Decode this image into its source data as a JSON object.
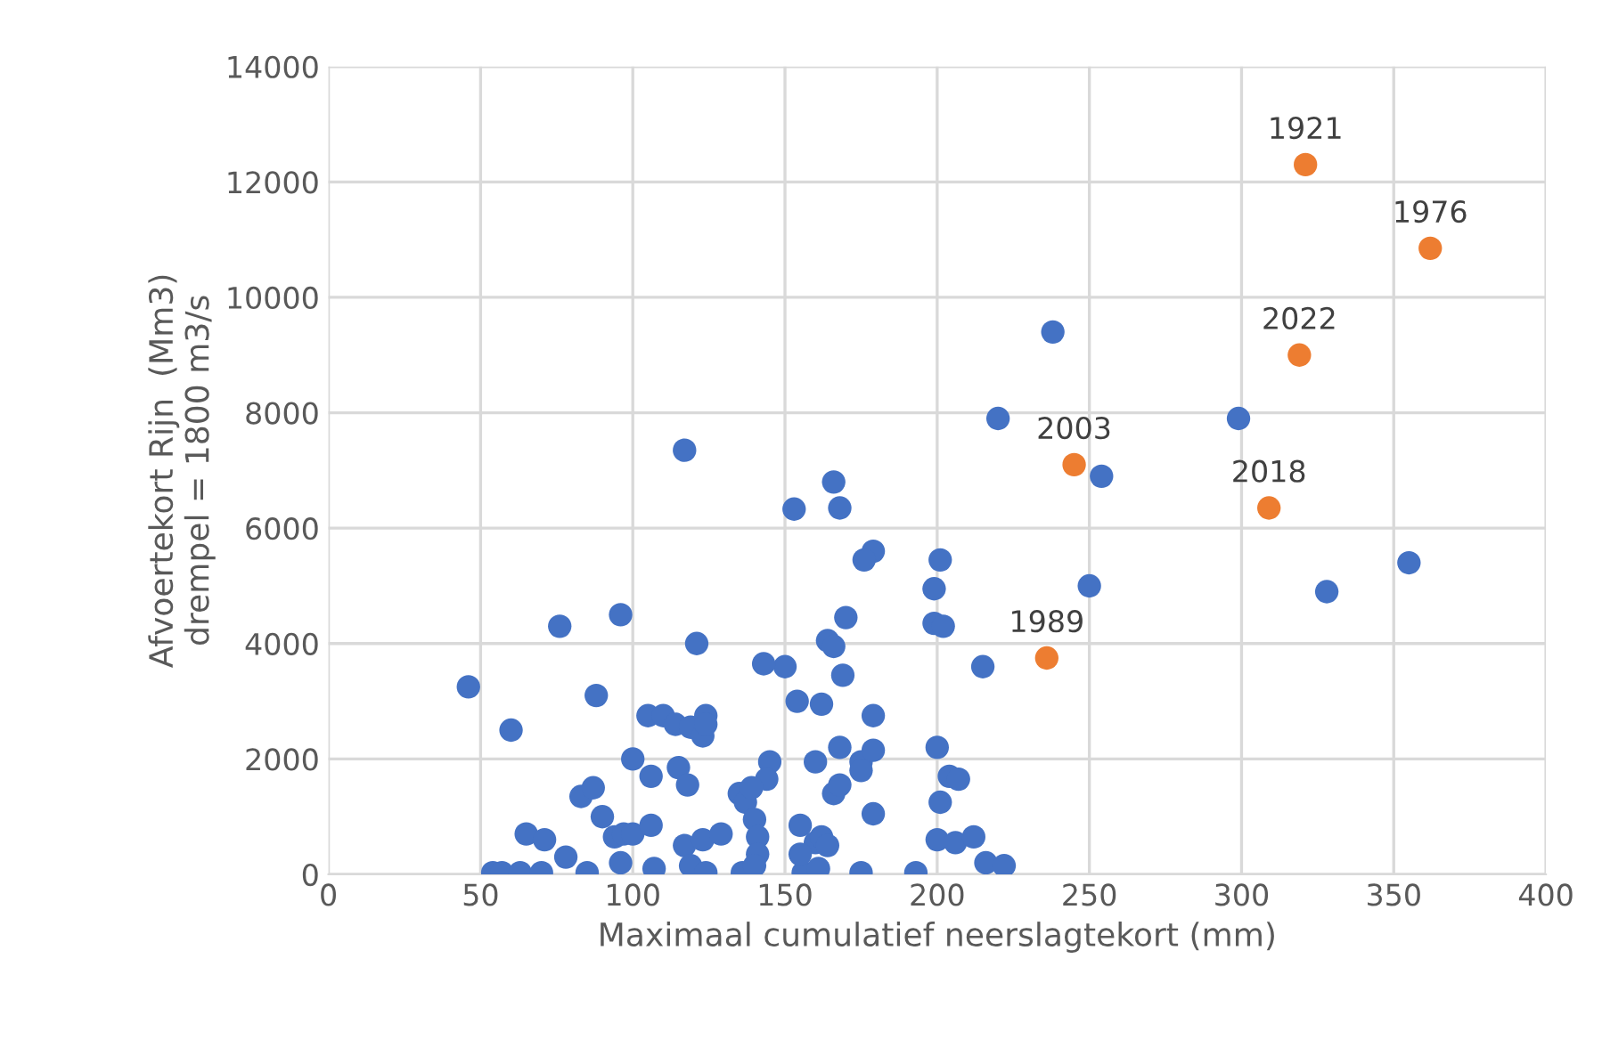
{
  "chart_data": {
    "type": "scatter",
    "xlabel": "Maximaal cumulatief neerslagtekort (mm)",
    "ylabel": "Afvoertekort Rijn  (Mm3)\ndrempel = 1800 m3/s",
    "xlim": [
      0,
      400
    ],
    "xticks": [
      0,
      50,
      100,
      150,
      200,
      250,
      300,
      350,
      400
    ],
    "ylim": [
      0,
      14000
    ],
    "yticks": [
      0,
      2000,
      4000,
      6000,
      8000,
      10000,
      12000,
      14000
    ],
    "grid": true,
    "marker": "circle",
    "series": [
      {
        "color": "#4472c4",
        "x": [
          46,
          60,
          76,
          96,
          88,
          117,
          153,
          166,
          168,
          179,
          176,
          201,
          199,
          199,
          202,
          170,
          164,
          166,
          150,
          143,
          121,
          169,
          215,
          220,
          238,
          254,
          250,
          299,
          328,
          355,
          162,
          154,
          179,
          124,
          105,
          110,
          114,
          119,
          123,
          124,
          160,
          145,
          144,
          175,
          175,
          168,
          179,
          200,
          100,
          106,
          115,
          118,
          83,
          87,
          90,
          94,
          97,
          100,
          106,
          117,
          119,
          123,
          129,
          135,
          137,
          139,
          140,
          141,
          141,
          96,
          107,
          124,
          136,
          140,
          155,
          160,
          162,
          164,
          166,
          168,
          179,
          156,
          161,
          175,
          193,
          204,
          207,
          201,
          200,
          206,
          212,
          216,
          222,
          54,
          57,
          63,
          70,
          65,
          71,
          78,
          85,
          155
        ],
        "values": [
          3250,
          2500,
          4300,
          4500,
          3100,
          7350,
          6330,
          6800,
          6350,
          5600,
          5450,
          5450,
          4950,
          4350,
          4300,
          4450,
          4050,
          3950,
          3600,
          3650,
          4000,
          3450,
          3600,
          7900,
          9400,
          6900,
          5000,
          7900,
          4900,
          5400,
          2950,
          3000,
          2750,
          2750,
          2750,
          2750,
          2600,
          2550,
          2400,
          2600,
          1950,
          1950,
          1650,
          1950,
          1800,
          2200,
          2150,
          2200,
          2000,
          1700,
          1850,
          1550,
          1350,
          1500,
          1000,
          650,
          700,
          700,
          850,
          500,
          150,
          600,
          700,
          1400,
          1250,
          1500,
          950,
          650,
          350,
          200,
          100,
          30,
          30,
          150,
          850,
          550,
          650,
          500,
          1400,
          1550,
          1050,
          30,
          100,
          30,
          30,
          1700,
          1650,
          1250,
          600,
          550,
          650,
          200,
          150,
          30,
          30,
          30,
          30,
          700,
          600,
          300,
          30,
          350
        ]
      },
      {
        "color": "#ed7d31",
        "x": [
          321,
          319,
          362,
          245,
          309,
          236
        ],
        "values": [
          12300,
          9000,
          10850,
          7100,
          6350,
          3750
        ]
      }
    ],
    "annotations": [
      {
        "text": "1921",
        "x": 321,
        "y": 12300
      },
      {
        "text": "2022",
        "x": 319,
        "y": 9000
      },
      {
        "text": "1976",
        "x": 362,
        "y": 10850
      },
      {
        "text": "2003",
        "x": 245,
        "y": 7100
      },
      {
        "text": "2018",
        "x": 309,
        "y": 6350
      },
      {
        "text": "1989",
        "x": 236,
        "y": 3750
      }
    ]
  }
}
